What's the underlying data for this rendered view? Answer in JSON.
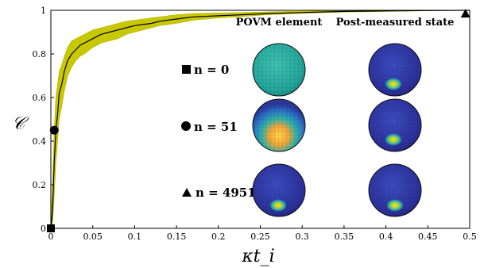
{
  "chart_data": {
    "type": "line",
    "xlabel": "κt_i",
    "ylabel": "𝒞",
    "xlim": [
      0,
      0.5
    ],
    "ylim": [
      0,
      1
    ],
    "xticks": [
      "0",
      "0.05",
      "0.1",
      "0.15",
      "0.2",
      "0.25",
      "0.3",
      "0.35",
      "0.4",
      "0.45",
      "0.5"
    ],
    "yticks": [
      "0",
      "0.2",
      "0.4",
      "0.6",
      "0.8",
      "1"
    ],
    "grid": false,
    "colors": {
      "band": "#c8c800",
      "line": "#000000",
      "axis": "#000000"
    },
    "series": [
      {
        "x": [
          0,
          0.002,
          0.004,
          0.006,
          0.008,
          0.01,
          0.013,
          0.016,
          0.02,
          0.025,
          0.03,
          0.035,
          0.04,
          0.05,
          0.06,
          0.07,
          0.08,
          0.09,
          0.1,
          0.11,
          0.12,
          0.13,
          0.14,
          0.15,
          0.17,
          0.2,
          0.23,
          0.26,
          0.3,
          0.35,
          0.4,
          0.45,
          0.5
        ],
        "y": [
          0.0,
          0.08,
          0.3,
          0.45,
          0.52,
          0.62,
          0.66,
          0.72,
          0.77,
          0.8,
          0.82,
          0.84,
          0.85,
          0.87,
          0.89,
          0.9,
          0.91,
          0.92,
          0.93,
          0.935,
          0.94,
          0.95,
          0.955,
          0.96,
          0.97,
          0.975,
          0.98,
          0.985,
          0.99,
          0.995,
          0.997,
          0.999,
          1.0
        ],
        "lower": [
          0.0,
          0.02,
          0.15,
          0.3,
          0.4,
          0.5,
          0.56,
          0.63,
          0.7,
          0.74,
          0.77,
          0.79,
          0.8,
          0.83,
          0.85,
          0.86,
          0.87,
          0.89,
          0.9,
          0.91,
          0.92,
          0.93,
          0.935,
          0.94,
          0.955,
          0.965,
          0.972,
          0.98,
          0.986,
          0.992,
          0.995,
          0.998,
          1.0
        ],
        "upper": [
          0.02,
          0.2,
          0.45,
          0.6,
          0.66,
          0.72,
          0.75,
          0.79,
          0.83,
          0.86,
          0.87,
          0.88,
          0.89,
          0.91,
          0.92,
          0.93,
          0.94,
          0.95,
          0.955,
          0.96,
          0.965,
          0.97,
          0.975,
          0.98,
          0.985,
          0.988,
          0.99,
          0.993,
          0.996,
          0.998,
          0.999,
          1.0,
          1.0
        ]
      }
    ],
    "markers": [
      {
        "shape": "square",
        "x": 0.0,
        "y": 0.0
      },
      {
        "shape": "circle",
        "x": 0.004,
        "y": 0.45
      },
      {
        "shape": "triangle",
        "x": 0.495,
        "y": 0.985
      }
    ]
  },
  "inset": {
    "col_povm": "POVM element",
    "col_post": "Post-measured state",
    "rows": [
      {
        "shape": "square",
        "label": "n = 0"
      },
      {
        "shape": "circle",
        "label": "n = 51"
      },
      {
        "shape": "triangle",
        "label": "n = 4951"
      }
    ]
  }
}
